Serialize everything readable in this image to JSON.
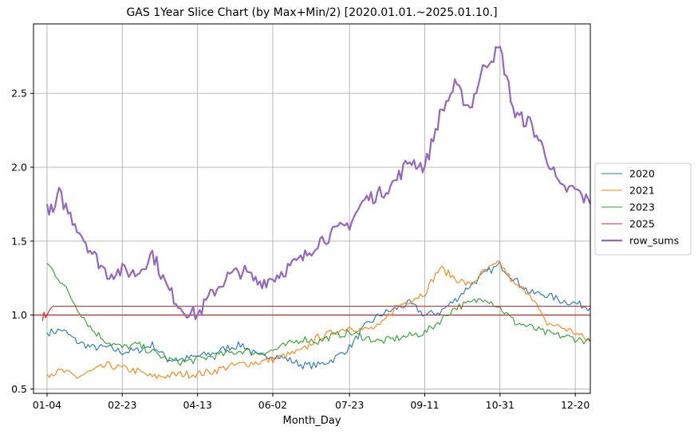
{
  "chart_data": {
    "type": "line",
    "title": "GAS 1Year Slice Chart (by Max+Min/2) [2020.01.01.~2025.01.10.]",
    "xlabel": "Month_Day",
    "ylabel": "",
    "x_ticks": [
      "01-04",
      "02-23",
      "04-13",
      "06-02",
      "07-23",
      "09-11",
      "10-31",
      "12-20"
    ],
    "y_ticks": [
      "0.5",
      "1.0",
      "1.5",
      "2.0",
      "2.5"
    ],
    "ylim": [
      0.47,
      2.97
    ],
    "xlim": [
      "12-27",
      "12-30"
    ],
    "grid": true,
    "legend_position": "right",
    "reference_line": {
      "y": 1.0,
      "color": "#d62728"
    },
    "series": [
      {
        "name": "2020",
        "color": "#1f77b4",
        "width": 1.1,
        "points": [
          [
            "01-04",
            0.88
          ],
          [
            "01-14",
            0.9
          ],
          [
            "01-24",
            0.82
          ],
          [
            "02-03",
            0.78
          ],
          [
            "02-13",
            0.78
          ],
          [
            "02-23",
            0.75
          ],
          [
            "03-04",
            0.76
          ],
          [
            "03-14",
            0.8
          ],
          [
            "03-24",
            0.7
          ],
          [
            "04-03",
            0.7
          ],
          [
            "04-13",
            0.72
          ],
          [
            "04-23",
            0.74
          ],
          [
            "05-03",
            0.78
          ],
          [
            "05-13",
            0.8
          ],
          [
            "05-23",
            0.72
          ],
          [
            "06-02",
            0.73
          ],
          [
            "06-12",
            0.7
          ],
          [
            "06-22",
            0.66
          ],
          [
            "07-02",
            0.66
          ],
          [
            "07-12",
            0.7
          ],
          [
            "07-23",
            0.78
          ],
          [
            "08-02",
            0.92
          ],
          [
            "08-12",
            1.0
          ],
          [
            "08-22",
            1.04
          ],
          [
            "09-01",
            1.08
          ],
          [
            "09-11",
            1.0
          ],
          [
            "09-21",
            1.02
          ],
          [
            "10-01",
            1.1
          ],
          [
            "10-11",
            1.2
          ],
          [
            "10-21",
            1.28
          ],
          [
            "10-31",
            1.34
          ],
          [
            "11-10",
            1.24
          ],
          [
            "11-20",
            1.15
          ],
          [
            "11-30",
            1.14
          ],
          [
            "12-10",
            1.1
          ],
          [
            "12-20",
            1.08
          ],
          [
            "12-30",
            1.05
          ]
        ]
      },
      {
        "name": "2021",
        "color": "#ff7f0e",
        "width": 1.1,
        "points": [
          [
            "01-04",
            0.6
          ],
          [
            "01-14",
            0.62
          ],
          [
            "01-24",
            0.58
          ],
          [
            "02-03",
            0.62
          ],
          [
            "02-13",
            0.66
          ],
          [
            "02-23",
            0.64
          ],
          [
            "03-04",
            0.62
          ],
          [
            "03-14",
            0.58
          ],
          [
            "03-24",
            0.59
          ],
          [
            "04-03",
            0.6
          ],
          [
            "04-13",
            0.6
          ],
          [
            "04-23",
            0.62
          ],
          [
            "05-03",
            0.65
          ],
          [
            "05-13",
            0.67
          ],
          [
            "05-23",
            0.68
          ],
          [
            "06-02",
            0.7
          ],
          [
            "06-12",
            0.73
          ],
          [
            "06-22",
            0.76
          ],
          [
            "07-02",
            0.85
          ],
          [
            "07-12",
            0.88
          ],
          [
            "07-23",
            0.92
          ],
          [
            "08-02",
            0.9
          ],
          [
            "08-12",
            0.92
          ],
          [
            "08-22",
            1.05
          ],
          [
            "09-01",
            1.1
          ],
          [
            "09-11",
            1.15
          ],
          [
            "09-21",
            1.32
          ],
          [
            "10-01",
            1.25
          ],
          [
            "10-11",
            1.2
          ],
          [
            "10-21",
            1.3
          ],
          [
            "10-31",
            1.35
          ],
          [
            "11-10",
            1.2
          ],
          [
            "11-20",
            1.15
          ],
          [
            "11-30",
            0.95
          ],
          [
            "12-10",
            0.92
          ],
          [
            "12-20",
            0.88
          ],
          [
            "12-30",
            0.82
          ]
        ]
      },
      {
        "name": "2023",
        "color": "#2ca02c",
        "width": 1.1,
        "points": [
          [
            "01-04",
            1.35
          ],
          [
            "01-14",
            1.22
          ],
          [
            "01-24",
            1.05
          ],
          [
            "02-03",
            0.9
          ],
          [
            "02-13",
            0.82
          ],
          [
            "02-23",
            0.78
          ],
          [
            "03-04",
            0.8
          ],
          [
            "03-14",
            0.75
          ],
          [
            "03-24",
            0.7
          ],
          [
            "04-03",
            0.68
          ],
          [
            "04-13",
            0.7
          ],
          [
            "04-23",
            0.72
          ],
          [
            "05-03",
            0.74
          ],
          [
            "05-13",
            0.76
          ],
          [
            "05-23",
            0.74
          ],
          [
            "06-02",
            0.76
          ],
          [
            "06-12",
            0.8
          ],
          [
            "06-22",
            0.84
          ],
          [
            "07-02",
            0.82
          ],
          [
            "07-12",
            0.86
          ],
          [
            "07-23",
            0.88
          ],
          [
            "08-02",
            0.85
          ],
          [
            "08-12",
            0.82
          ],
          [
            "08-22",
            0.84
          ],
          [
            "09-01",
            0.86
          ],
          [
            "09-11",
            0.88
          ],
          [
            "09-21",
            0.96
          ],
          [
            "10-01",
            1.05
          ],
          [
            "10-11",
            1.08
          ],
          [
            "10-21",
            1.12
          ],
          [
            "10-31",
            1.05
          ],
          [
            "11-10",
            0.95
          ],
          [
            "11-20",
            0.92
          ],
          [
            "11-30",
            0.88
          ],
          [
            "12-10",
            0.86
          ],
          [
            "12-20",
            0.84
          ],
          [
            "12-30",
            0.82
          ]
        ]
      },
      {
        "name": "2025",
        "color": "#d62728",
        "width": 1.1,
        "points": [
          [
            "01-01",
            0.96
          ],
          [
            "01-02",
            1.02
          ],
          [
            "01-03",
            0.98
          ],
          [
            "01-04",
            1.0
          ],
          [
            "01-06",
            1.04
          ],
          [
            "01-08",
            1.06
          ],
          [
            "01-10",
            1.06
          ],
          [
            "12-30",
            1.06
          ]
        ]
      },
      {
        "name": "row_sums",
        "color": "#9467bd",
        "width": 2.2,
        "points": [
          [
            "01-04",
            1.75
          ],
          [
            "01-08",
            1.68
          ],
          [
            "01-12",
            1.82
          ],
          [
            "01-18",
            1.7
          ],
          [
            "01-24",
            1.6
          ],
          [
            "02-03",
            1.42
          ],
          [
            "02-13",
            1.28
          ],
          [
            "02-23",
            1.3
          ],
          [
            "03-04",
            1.28
          ],
          [
            "03-14",
            1.42
          ],
          [
            "03-24",
            1.18
          ],
          [
            "04-03",
            1.04
          ],
          [
            "04-13",
            1.0
          ],
          [
            "04-23",
            1.15
          ],
          [
            "05-03",
            1.26
          ],
          [
            "05-13",
            1.3
          ],
          [
            "05-23",
            1.22
          ],
          [
            "06-02",
            1.25
          ],
          [
            "06-12",
            1.32
          ],
          [
            "06-22",
            1.38
          ],
          [
            "07-02",
            1.5
          ],
          [
            "07-12",
            1.55
          ],
          [
            "07-23",
            1.62
          ],
          [
            "08-02",
            1.78
          ],
          [
            "08-12",
            1.82
          ],
          [
            "08-22",
            1.9
          ],
          [
            "09-01",
            2.05
          ],
          [
            "09-11",
            2.0
          ],
          [
            "09-21",
            2.35
          ],
          [
            "10-01",
            2.55
          ],
          [
            "10-11",
            2.4
          ],
          [
            "10-21",
            2.7
          ],
          [
            "10-31",
            2.8
          ],
          [
            "11-10",
            2.35
          ],
          [
            "11-20",
            2.3
          ],
          [
            "11-30",
            2.1
          ],
          [
            "12-10",
            1.85
          ],
          [
            "12-20",
            1.85
          ],
          [
            "12-30",
            1.75
          ]
        ]
      }
    ]
  }
}
